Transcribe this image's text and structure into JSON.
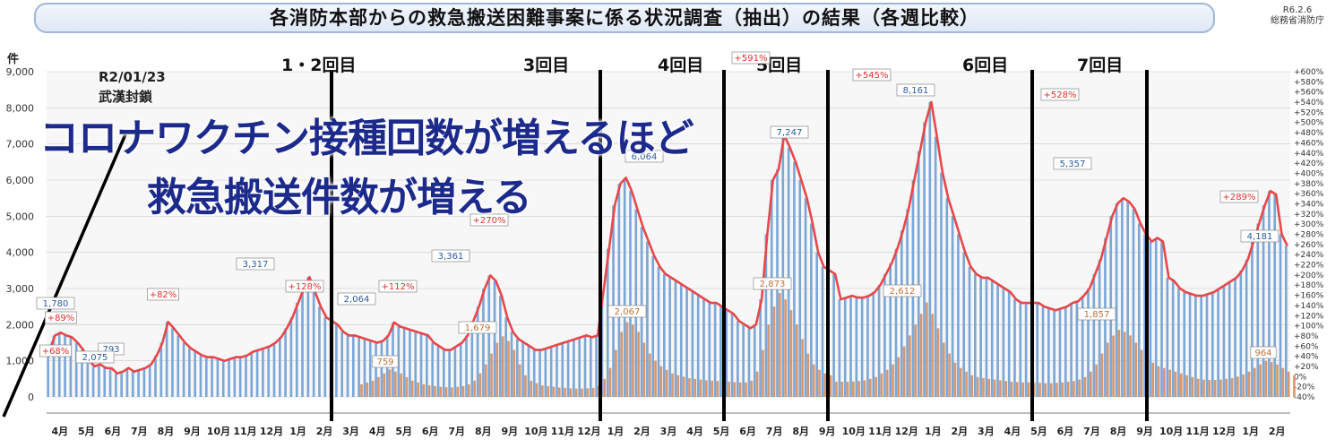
{
  "header": {
    "title": "各消防本部からの救急搬送困難事案に係る状況調査（抽出）の結果（各週比較）",
    "date": "R6.2.6",
    "agency": "総務省消防庁"
  },
  "overlay": {
    "line1": "コロナワクチン接種回数が増えるほど",
    "line2": "救急搬送件数が増える"
  },
  "annotation": {
    "date": "R2/01/23",
    "event": "武漢封鎖"
  },
  "colors": {
    "bar_total": "#7ba7d7",
    "bar_covid": "#d7976e",
    "line": "#e8474a",
    "grid": "#c9c9c9",
    "divider": "#000000",
    "label_red": "#d9332f",
    "label_blue": "#2c5aa0",
    "label_orange": "#c0703a"
  },
  "chart_data": {
    "type": "bar",
    "y_axis_left": {
      "unit": "件",
      "range": [
        0,
        9000
      ],
      "ticks": [
        "0",
        "1,000",
        "2,000",
        "3,000",
        "4,000",
        "5,000",
        "6,000",
        "7,000",
        "8,000",
        "9,000"
      ]
    },
    "y_axis_right": {
      "range": [
        -40,
        600
      ],
      "ticks": [
        "-40%",
        "-20%",
        "0%",
        "+20%",
        "+40%",
        "+60%",
        "+80%",
        "+100%",
        "+120%",
        "+140%",
        "+160%",
        "+180%",
        "+200%",
        "+220%",
        "+240%",
        "+260%",
        "+280%",
        "+300%",
        "+320%",
        "+340%",
        "+360%",
        "+380%",
        "+400%",
        "+420%",
        "+440%",
        "+460%",
        "+480%",
        "+500%",
        "+520%",
        "+540%",
        "+560%",
        "+580%",
        "+600%"
      ]
    },
    "months": [
      "4月",
      "5月",
      "6月",
      "7月",
      "8月",
      "9月",
      "10月",
      "11月",
      "12月",
      "1月",
      "2月",
      "3月",
      "4月",
      "5月",
      "6月",
      "7月",
      "8月",
      "9月",
      "10月",
      "11月",
      "12月",
      "1月",
      "2月",
      "3月",
      "4月",
      "5月",
      "6月",
      "7月",
      "8月",
      "9月",
      "10月",
      "11月",
      "12月",
      "1月",
      "2月",
      "3月",
      "4月",
      "5月",
      "6月",
      "7月",
      "8月",
      "9月",
      "10月",
      "11月",
      "12月",
      "1月",
      "2月"
    ],
    "grid": true,
    "divider_labels": [
      "1・2回目",
      "3回目",
      "4回目",
      "5回目",
      "6回目",
      "7回目"
    ],
    "callouts": [
      {
        "text": "1,780",
        "kind": "total"
      },
      {
        "text": "+89%",
        "kind": "rate"
      },
      {
        "text": "+68%",
        "kind": "rate"
      },
      {
        "text": "793",
        "kind": "total"
      },
      {
        "text": "2,075",
        "kind": "total"
      },
      {
        "text": "+82%",
        "kind": "rate"
      },
      {
        "text": "3,317",
        "kind": "total"
      },
      {
        "text": "+128%",
        "kind": "rate"
      },
      {
        "text": "2,064",
        "kind": "total"
      },
      {
        "text": "+112%",
        "kind": "rate"
      },
      {
        "text": "759",
        "kind": "covid"
      },
      {
        "text": "3,361",
        "kind": "total"
      },
      {
        "text": "+270%",
        "kind": "rate"
      },
      {
        "text": "1,679",
        "kind": "covid"
      },
      {
        "text": "6,064",
        "kind": "total"
      },
      {
        "text": "2,067",
        "kind": "covid"
      },
      {
        "text": "+591%",
        "kind": "rate"
      },
      {
        "text": "7,247",
        "kind": "total"
      },
      {
        "text": "2,873",
        "kind": "covid"
      },
      {
        "text": "+545%",
        "kind": "rate"
      },
      {
        "text": "8,161",
        "kind": "total"
      },
      {
        "text": "2,612",
        "kind": "covid"
      },
      {
        "text": "+528%",
        "kind": "rate"
      },
      {
        "text": "5,357",
        "kind": "total"
      },
      {
        "text": "1,857",
        "kind": "covid"
      },
      {
        "text": "+289%",
        "kind": "rate"
      },
      {
        "text": "4,181",
        "kind": "total"
      },
      {
        "text": "964",
        "kind": "covid"
      }
    ],
    "total_weekly": [
      1300,
      1700,
      1780,
      1700,
      1650,
      1500,
      1300,
      1000,
      850,
      900,
      800,
      793,
      650,
      700,
      800,
      700,
      750,
      800,
      900,
      1150,
      1500,
      2075,
      1900,
      1700,
      1500,
      1350,
      1250,
      1150,
      1100,
      1100,
      1050,
      1000,
      1050,
      1100,
      1100,
      1150,
      1250,
      1300,
      1350,
      1400,
      1500,
      1650,
      1900,
      2200,
      2600,
      3000,
      3317,
      2900,
      2500,
      2200,
      2100,
      2000,
      1800,
      1700,
      1700,
      1650,
      1600,
      1550,
      1500,
      1550,
      1700,
      2064,
      1950,
      1900,
      1850,
      1800,
      1750,
      1700,
      1500,
      1400,
      1300,
      1300,
      1400,
      1500,
      1700,
      2100,
      2500,
      3000,
      3361,
      3200,
      2800,
      2200,
      1800,
      1600,
      1500,
      1400,
      1300,
      1300,
      1350,
      1400,
      1450,
      1500,
      1550,
      1600,
      1650,
      1700,
      1650,
      1700,
      2900,
      4100,
      5300,
      5900,
      6064,
      5700,
      5200,
      4700,
      4300,
      3900,
      3600,
      3400,
      3300,
      3200,
      3100,
      3000,
      2900,
      2800,
      2700,
      2600,
      2600,
      2500,
      2400,
      2300,
      2100,
      2000,
      1900,
      2000,
      2700,
      4500,
      6000,
      6300,
      7247,
      6900,
      6500,
      6000,
      5500,
      4800,
      4000,
      3600,
      3500,
      3400,
      2700,
      2750,
      2800,
      2750,
      2750,
      2800,
      2900,
      3100,
      3400,
      3700,
      4100,
      4600,
      5200,
      6000,
      6800,
      7600,
      8161,
      7200,
      6200,
      5500,
      5000,
      4500,
      4000,
      3600,
      3400,
      3300,
      3300,
      3200,
      3100,
      3000,
      2900,
      2700,
      2600,
      2600,
      2600,
      2600,
      2500,
      2450,
      2400,
      2450,
      2500,
      2600,
      2650,
      2800,
      3000,
      3400,
      3800,
      4400,
      5000,
      5357,
      5500,
      5400,
      5200,
      4800,
      4500,
      4300,
      4400,
      4300,
      3300,
      3200,
      3000,
      2900,
      2850,
      2800,
      2800,
      2850,
      2900,
      3000,
      3100,
      3200,
      3300,
      3500,
      3800,
      4300,
      4800,
      5300,
      5700,
      5600,
      4500,
      4181
    ],
    "covid_weekly": [
      0,
      0,
      0,
      0,
      0,
      0,
      0,
      0,
      0,
      0,
      0,
      0,
      0,
      0,
      0,
      0,
      0,
      0,
      0,
      0,
      0,
      0,
      0,
      0,
      0,
      0,
      0,
      0,
      0,
      0,
      0,
      0,
      0,
      0,
      0,
      0,
      0,
      0,
      0,
      0,
      0,
      0,
      0,
      0,
      0,
      0,
      0,
      0,
      0,
      0,
      0,
      0,
      0,
      0,
      0,
      350,
      400,
      450,
      550,
      650,
      759,
      700,
      650,
      550,
      450,
      400,
      350,
      320,
      300,
      280,
      270,
      260,
      280,
      300,
      350,
      450,
      650,
      900,
      1200,
      1500,
      1679,
      1550,
      1300,
      900,
      600,
      450,
      380,
      320,
      300,
      280,
      260,
      250,
      240,
      230,
      230,
      240,
      250,
      300,
      500,
      800,
      1300,
      1800,
      2067,
      2000,
      1800,
      1500,
      1200,
      1000,
      850,
      750,
      650,
      600,
      560,
      520,
      500,
      480,
      460,
      450,
      440,
      430,
      420,
      410,
      400,
      400,
      450,
      700,
      1300,
      2000,
      2500,
      2873,
      2700,
      2400,
      2000,
      1600,
      1200,
      900,
      750,
      650,
      600,
      420,
      420,
      420,
      430,
      440,
      460,
      500,
      550,
      650,
      750,
      900,
      1100,
      1400,
      1700,
      2000,
      2300,
      2612,
      2300,
      1900,
      1500,
      1200,
      950,
      800,
      700,
      600,
      550,
      520,
      500,
      480,
      460,
      440,
      420,
      410,
      400,
      400,
      400,
      390,
      380,
      380,
      390,
      400,
      420,
      440,
      480,
      550,
      700,
      900,
      1200,
      1500,
      1700,
      1857,
      1800,
      1700,
      1500,
      1300,
      1100,
      950,
      850,
      800,
      750,
      700,
      650,
      600,
      550,
      500,
      480,
      470,
      470,
      480,
      500,
      520,
      560,
      620,
      700,
      800,
      900,
      1000,
      964,
      900,
      800,
      700,
      600
    ]
  }
}
